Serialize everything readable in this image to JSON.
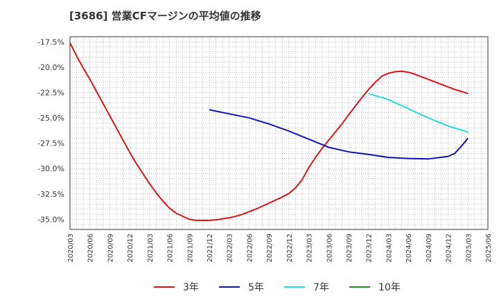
{
  "chart_data": {
    "type": "line",
    "title": "[3686]  営業CFマージンの平均値の推移",
    "xlabel": "",
    "ylabel": "",
    "ylim": [
      -36.0,
      -17.0
    ],
    "xlim": [
      "2020/03",
      "2025/06"
    ],
    "y_ticks": [
      -17.5,
      -20.0,
      -22.5,
      -25.0,
      -27.5,
      -30.0,
      -32.5,
      -35.0
    ],
    "y_tick_labels": [
      "-17.5%",
      "-20.0%",
      "-22.5%",
      "-25.0%",
      "-27.5%",
      "-30.0%",
      "-32.5%",
      "-35.0%"
    ],
    "x_tick_labels": [
      "2020/03",
      "2020/06",
      "2020/09",
      "2020/12",
      "2021/03",
      "2021/06",
      "2021/09",
      "2021/12",
      "2022/03",
      "2022/06",
      "2022/09",
      "2022/12",
      "2023/03",
      "2023/06",
      "2023/09",
      "2023/12",
      "2024/03",
      "2024/06",
      "2024/09",
      "2024/12",
      "2025/03",
      "2025/06"
    ],
    "grid": true,
    "legend_position": "bottom",
    "series": [
      {
        "name": "3年",
        "color": "#dd1111",
        "x": [
          "2020/03",
          "2020/04",
          "2020/05",
          "2020/06",
          "2020/07",
          "2020/08",
          "2020/09",
          "2020/10",
          "2020/11",
          "2020/12",
          "2021/01",
          "2021/02",
          "2021/03",
          "2021/04",
          "2021/05",
          "2021/06",
          "2021/07",
          "2021/08",
          "2021/09",
          "2021/10",
          "2021/11",
          "2021/12",
          "2022/01",
          "2022/02",
          "2022/03",
          "2022/04",
          "2022/05",
          "2022/06",
          "2022/07",
          "2022/08",
          "2022/09",
          "2022/10",
          "2022/11",
          "2022/12",
          "2023/01",
          "2023/02",
          "2023/03",
          "2023/04",
          "2023/05",
          "2023/06",
          "2023/07",
          "2023/08",
          "2023/09",
          "2023/10",
          "2023/11",
          "2023/12",
          "2024/01",
          "2024/02",
          "2024/03",
          "2024/04",
          "2024/05",
          "2024/06",
          "2024/07",
          "2024/08",
          "2024/09",
          "2024/10",
          "2024/11",
          "2024/12",
          "2025/01",
          "2025/02",
          "2025/03"
        ],
        "values": [
          -17.6,
          -18.9,
          -20.1,
          -21.2,
          -22.4,
          -23.6,
          -24.8,
          -26.0,
          -27.2,
          -28.4,
          -29.5,
          -30.5,
          -31.5,
          -32.4,
          -33.2,
          -33.9,
          -34.4,
          -34.7,
          -35.0,
          -35.1,
          -35.1,
          -35.1,
          -35.05,
          -34.95,
          -34.85,
          -34.7,
          -34.5,
          -34.25,
          -34.0,
          -33.7,
          -33.4,
          -33.1,
          -32.8,
          -32.45,
          -31.9,
          -31.1,
          -29.9,
          -28.9,
          -28.0,
          -27.2,
          -26.4,
          -25.6,
          -24.7,
          -23.85,
          -23.0,
          -22.2,
          -21.5,
          -20.9,
          -20.6,
          -20.45,
          -20.4,
          -20.5,
          -20.7,
          -20.95,
          -21.2,
          -21.45,
          -21.7,
          -21.95,
          -22.2,
          -22.4,
          -22.6
        ]
      },
      {
        "name": "5年",
        "color": "#1111bb",
        "x": [
          "2021/12",
          "2022/03",
          "2022/06",
          "2022/09",
          "2022/12",
          "2023/03",
          "2023/06",
          "2023/09",
          "2023/12",
          "2024/03",
          "2024/06",
          "2024/09",
          "2024/12",
          "2025/01",
          "2025/02",
          "2025/03"
        ],
        "values": [
          -24.2,
          -24.6,
          -25.0,
          -25.6,
          -26.3,
          -27.1,
          -27.9,
          -28.35,
          -28.6,
          -28.9,
          -29.0,
          -29.05,
          -28.8,
          -28.5,
          -27.8,
          -27.0
        ]
      },
      {
        "name": "7年",
        "color": "#22dddd",
        "x": [
          "2023/12",
          "2024/03",
          "2024/06",
          "2024/09",
          "2024/12",
          "2025/03"
        ],
        "values": [
          -22.6,
          -23.2,
          -24.1,
          -25.0,
          -25.8,
          -26.4
        ]
      },
      {
        "name": "10年",
        "color": "#228822",
        "x": [],
        "values": []
      }
    ]
  }
}
